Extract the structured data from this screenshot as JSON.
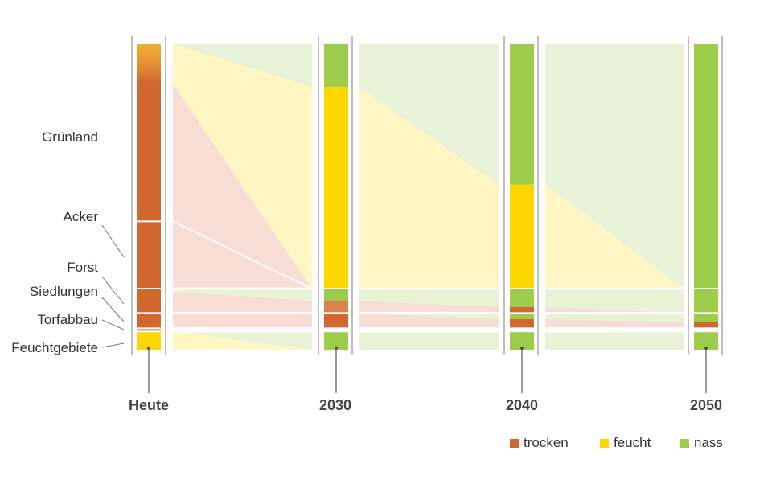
{
  "chart_data": {
    "type": "sankey",
    "columns": [
      "Heute",
      "2030",
      "2040",
      "2050"
    ],
    "land_uses": [
      "Grünland",
      "Acker",
      "Forst",
      "Siedlungen",
      "Torfabbau",
      "Feuchtgebiete"
    ],
    "legend": [
      {
        "key": "trocken",
        "label": "trocken",
        "color": "#D0672E"
      },
      {
        "key": "feucht",
        "label": "feucht",
        "color": "#FFD700"
      },
      {
        "key": "nass",
        "label": "nass",
        "color": "#9DCB4A"
      }
    ],
    "bars": {
      "Heute": [
        {
          "group": "Grünland",
          "from": 0,
          "to": 13,
          "state": "transition"
        },
        {
          "group": "Grünland",
          "from": 13,
          "to": 58,
          "state": "trocken"
        },
        {
          "group": "Acker",
          "from": 58,
          "to": 80,
          "state": "trocken"
        },
        {
          "group": "Forst",
          "from": 80,
          "to": 88,
          "state": "trocken"
        },
        {
          "group": "Siedlungen",
          "from": 88,
          "to": 93,
          "state": "trocken"
        },
        {
          "group": "Torfabbau",
          "from": 93,
          "to": 94,
          "state": "trocken"
        },
        {
          "group": "Feuchtgebiete",
          "from": 94,
          "to": 100,
          "state": "feucht"
        }
      ],
      "2030": [
        {
          "group": "Grünland+Acker",
          "from": 0,
          "to": 14,
          "state": "nass"
        },
        {
          "group": "Grünland+Acker",
          "from": 14,
          "to": 80,
          "state": "feucht"
        },
        {
          "group": "Forst",
          "from": 80,
          "to": 84,
          "state": "nass"
        },
        {
          "group": "Forst",
          "from": 84,
          "to": 88,
          "state": "trocken_light"
        },
        {
          "group": "Siedlungen",
          "from": 88,
          "to": 93,
          "state": "trocken"
        },
        {
          "group": "Feuchtgebiete",
          "from": 94,
          "to": 100,
          "state": "nass"
        }
      ],
      "2040": [
        {
          "group": "Grünland+Acker",
          "from": 0,
          "to": 46,
          "state": "nass"
        },
        {
          "group": "Grünland+Acker",
          "from": 46,
          "to": 80,
          "state": "feucht"
        },
        {
          "group": "Forst",
          "from": 80,
          "to": 86,
          "state": "nass"
        },
        {
          "group": "Forst",
          "from": 86,
          "to": 88,
          "state": "trocken"
        },
        {
          "group": "Siedlungen",
          "from": 88,
          "to": 90,
          "state": "nass"
        },
        {
          "group": "Siedlungen",
          "from": 90,
          "to": 93,
          "state": "trocken"
        },
        {
          "group": "Feuchtgebiete",
          "from": 94,
          "to": 100,
          "state": "nass"
        }
      ],
      "2050": [
        {
          "group": "Grünland+Acker",
          "from": 0,
          "to": 80,
          "state": "nass"
        },
        {
          "group": "Forst",
          "from": 80,
          "to": 88,
          "state": "nass"
        },
        {
          "group": "Siedlungen",
          "from": 88,
          "to": 91,
          "state": "nass"
        },
        {
          "group": "Siedlungen",
          "from": 91,
          "to": 93,
          "state": "trocken"
        },
        {
          "group": "Feuchtgebiete",
          "from": 94,
          "to": 100,
          "state": "nass"
        }
      ]
    }
  }
}
